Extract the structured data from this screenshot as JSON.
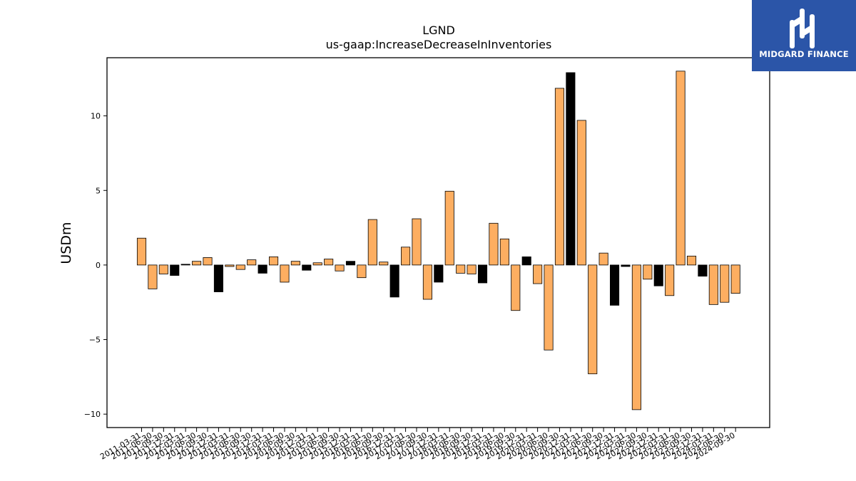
{
  "chart_data": {
    "type": "bar",
    "title": "LGND",
    "subtitle": "us-gaap:IncreaseDecreaseInInventories",
    "xlabel": "",
    "ylabel": "USDm",
    "ylim": [
      -10.9,
      13.9
    ],
    "yticks": [
      -10,
      -5,
      0,
      5,
      10
    ],
    "ytick_labels": [
      "−10",
      "−5",
      "0",
      "5",
      "10"
    ],
    "grid": false,
    "highlight_color": "#000000",
    "default_color": "#fdae61",
    "categories": [
      "2011-03-31",
      "2011-06-30",
      "2011-09-30",
      "2011-12-31",
      "2012-03-31",
      "2012-06-30",
      "2012-09-30",
      "2012-12-31",
      "2013-03-31",
      "2013-06-30",
      "2013-09-30",
      "2013-12-31",
      "2014-03-31",
      "2014-06-30",
      "2014-09-30",
      "2014-12-31",
      "2015-03-31",
      "2015-06-30",
      "2015-09-30",
      "2015-12-31",
      "2016-03-31",
      "2016-06-30",
      "2016-09-30",
      "2016-12-31",
      "2017-03-31",
      "2017-06-30",
      "2017-09-30",
      "2017-12-31",
      "2018-03-31",
      "2018-06-30",
      "2018-09-30",
      "2018-12-31",
      "2019-03-31",
      "2019-06-30",
      "2019-09-30",
      "2019-12-31",
      "2020-03-31",
      "2020-06-30",
      "2020-09-30",
      "2020-12-31",
      "2021-03-31",
      "2021-06-30",
      "2021-09-30",
      "2021-12-31",
      "2022-03-31",
      "2022-06-30",
      "2022-09-30",
      "2022-12-31",
      "2023-03-31",
      "2023-06-30",
      "2023-09-30",
      "2023-12-31",
      "2024-03-31",
      "2024-06-30",
      "2024-09-30"
    ],
    "values": [
      1.8,
      -1.6,
      -0.6,
      -0.7,
      0.05,
      0.25,
      0.5,
      -1.8,
      -0.1,
      -0.3,
      0.35,
      -0.55,
      0.55,
      -1.15,
      0.25,
      -0.35,
      0.15,
      0.4,
      -0.4,
      0.25,
      -0.85,
      3.05,
      0.2,
      -2.15,
      1.2,
      3.1,
      -2.3,
      -1.15,
      4.95,
      -0.55,
      -0.6,
      -1.2,
      2.8,
      1.75,
      -3.05,
      0.55,
      -1.25,
      -5.7,
      11.85,
      12.9,
      9.7,
      -7.3,
      0.8,
      -2.7,
      -0.1,
      -9.7,
      -0.95,
      -1.4,
      -2.05,
      13.0,
      0.6,
      -0.75,
      -2.65,
      -2.5,
      -1.9
    ],
    "highlighted": [
      false,
      false,
      false,
      true,
      true,
      false,
      false,
      true,
      false,
      false,
      false,
      true,
      false,
      false,
      false,
      true,
      false,
      false,
      false,
      true,
      false,
      false,
      false,
      true,
      false,
      false,
      false,
      true,
      false,
      false,
      false,
      true,
      false,
      false,
      false,
      true,
      false,
      false,
      false,
      true,
      false,
      false,
      false,
      true,
      true,
      false,
      false,
      true,
      false,
      false,
      false,
      true,
      false,
      false,
      false
    ]
  },
  "logo": {
    "text": "MIDGARD FINANCE",
    "bg_color": "#2b55a8",
    "fg_color": "#ffffff"
  }
}
